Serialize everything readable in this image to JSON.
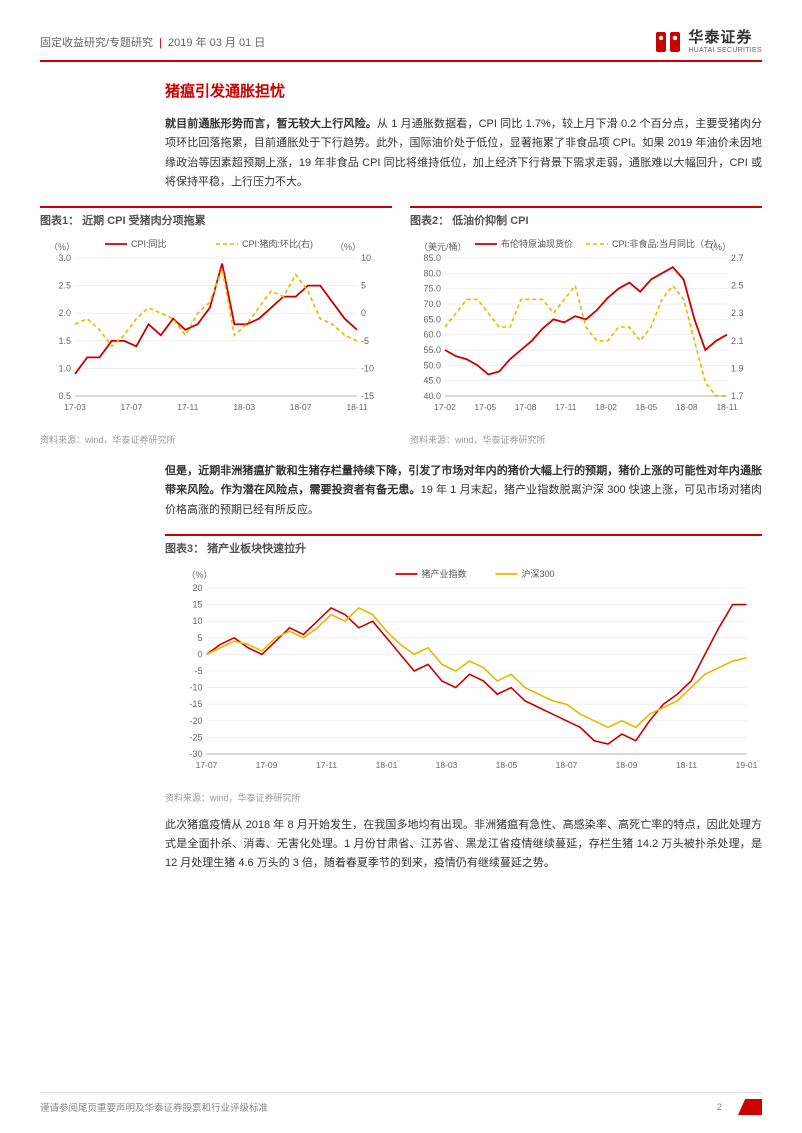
{
  "header": {
    "category": "固定收益研究/专题研究",
    "date": "2019 年 03 月 01 日",
    "brand_cn": "华泰证券",
    "brand_en": "HUATAI SECURITIES"
  },
  "section_title": "猪瘟引发通胀担忧",
  "para1_bold": "就目前通胀形势而言，暂无较大上行风险。",
  "para1_rest": "从 1 月通胀数据看，CPI 同比 1.7%，较上月下滑 0.2 个百分点，主要受猪肉分项环比回落拖累，目前通胀处于下行趋势。此外，国际油价处于低位，显著拖累了非食品项 CPI。如果 2019 年油价未因地缘政治等因素超预期上涨，19 年非食品 CPI 同比将维持低位，加上经济下行背景下需求走弱，通胀难以大幅回升，CPI 或将保持平稳，上行压力不大。",
  "chart1": {
    "title": "图表1：  近期 CPI 受猪肉分项拖累",
    "y1_unit": "（%）",
    "y2_unit": "（%）",
    "legend1": "CPI:同比",
    "legend2": "CPI:猪肉:环比(右)",
    "x_ticks": [
      "17-03",
      "17-07",
      "17-11",
      "18-03",
      "18-07",
      "18-11"
    ],
    "y1_ticks": [
      0.5,
      1.0,
      1.5,
      2.0,
      2.5,
      3.0
    ],
    "y2_ticks": [
      -15,
      -10,
      -5,
      0,
      5,
      10
    ],
    "y1_range": [
      0.5,
      3.0
    ],
    "y2_range": [
      -15,
      10
    ],
    "series1": [
      0.9,
      1.2,
      1.2,
      1.5,
      1.5,
      1.4,
      1.8,
      1.6,
      1.9,
      1.7,
      1.8,
      2.1,
      2.9,
      1.8,
      1.8,
      1.9,
      2.1,
      2.3,
      2.3,
      2.5,
      2.5,
      2.2,
      1.9,
      1.7
    ],
    "series2": [
      -2,
      -1,
      -3,
      -6,
      -4,
      -1,
      1,
      0,
      -1,
      -4,
      0,
      2,
      8,
      -4,
      -2,
      1,
      4,
      3,
      7,
      4,
      -1,
      -2,
      -4,
      -5
    ],
    "color1": "#c80000",
    "color2": "#e6b800",
    "dash2": "4,3",
    "source": "资料来源：wind，华泰证券研究所"
  },
  "chart2": {
    "title": "图表2：  低油价抑制 CPI",
    "y1_unit": "（美元/桶）",
    "y2_unit": "（%）",
    "legend1": "布伦特原油现货价",
    "legend2": "CPI:非食品:当月同比（右）",
    "x_ticks": [
      "17-02",
      "17-05",
      "17-08",
      "17-11",
      "18-02",
      "18-05",
      "18-08",
      "18-11"
    ],
    "y1_ticks": [
      40,
      45,
      50,
      55,
      60,
      65,
      70,
      75,
      80,
      85
    ],
    "y2_ticks": [
      1.7,
      1.9,
      2.1,
      2.3,
      2.5,
      2.7
    ],
    "y1_range": [
      40,
      85
    ],
    "y2_range": [
      1.7,
      2.7
    ],
    "series1": [
      55,
      53,
      52,
      50,
      47,
      48,
      52,
      55,
      58,
      62,
      65,
      64,
      66,
      65,
      68,
      72,
      75,
      77,
      74,
      78,
      80,
      82,
      78,
      65,
      55,
      58,
      60
    ],
    "series2": [
      2.2,
      2.3,
      2.4,
      2.4,
      2.3,
      2.2,
      2.2,
      2.4,
      2.4,
      2.4,
      2.3,
      2.4,
      2.5,
      2.2,
      2.1,
      2.1,
      2.2,
      2.2,
      2.1,
      2.2,
      2.4,
      2.5,
      2.4,
      2.1,
      1.8,
      1.7,
      1.7
    ],
    "color1": "#c80000",
    "color2": "#e6b800",
    "dash2": "4,3",
    "source": "资料来源：wind，华泰证券研究所"
  },
  "para2_bold": "但是，近期非洲猪瘟扩散和生猪存栏量持续下降，引发了市场对年内的猪价大幅上行的预期，猪价上涨的可能性对年内通胀带来风险。作为潜在风险点，需要投资者有备无患。",
  "para2_rest": "19 年 1 月末起，猪产业指数脱离沪深 300 快速上涨，可见市场对猪肉价格高涨的预期已经有所反应。",
  "chart3": {
    "title": "图表3：  猪产业板块快速拉升",
    "y_unit": "（%）",
    "legend1": "猪产业指数",
    "legend2": "沪深300",
    "x_ticks": [
      "17-07",
      "17-09",
      "17-11",
      "18-01",
      "18-03",
      "18-05",
      "18-07",
      "18-09",
      "18-11",
      "19-01"
    ],
    "y_ticks": [
      -30,
      -25,
      -20,
      -15,
      -10,
      -5,
      0,
      5,
      10,
      15,
      20
    ],
    "y_range": [
      -30,
      20
    ],
    "series1": [
      0,
      3,
      5,
      2,
      0,
      4,
      8,
      6,
      10,
      14,
      12,
      8,
      10,
      5,
      0,
      -5,
      -3,
      -8,
      -10,
      -6,
      -8,
      -12,
      -10,
      -14,
      -16,
      -18,
      -20,
      -22,
      -26,
      -27,
      -24,
      -26,
      -20,
      -15,
      -12,
      -8,
      0,
      8,
      15,
      15
    ],
    "series2": [
      0,
      2,
      4,
      3,
      1,
      5,
      7,
      5,
      8,
      12,
      10,
      14,
      12,
      7,
      3,
      0,
      2,
      -3,
      -5,
      -2,
      -4,
      -8,
      -6,
      -10,
      -12,
      -14,
      -15,
      -18,
      -20,
      -22,
      -20,
      -22,
      -18,
      -16,
      -14,
      -10,
      -6,
      -4,
      -2,
      -1
    ],
    "color1": "#c80000",
    "color2": "#e6b800",
    "source": "资料来源：wind，华泰证券研究所"
  },
  "para3": "此次猪瘟疫情从 2018 年 8 月开始发生，在我国多地均有出现。非洲猪瘟有急性、高感染率、高死亡率的特点，因此处理方式是全面扑杀、消毒、无害化处理。1 月份甘肃省、江苏省、黑龙江省疫情继续蔓延，存栏生猪 14.2 万头被扑杀处理，是 12 月处理生猪 4.6 万头的 3 倍，随着春夏季节的到来，疫情仍有继续蔓延之势。",
  "footer": {
    "disclaimer": "谨请参阅尾页重要声明及华泰证券股票和行业评级标准",
    "page": "2"
  },
  "colors": {
    "brand_red": "#c80000",
    "grid": "#d9d9d9",
    "text_muted": "#999999"
  }
}
